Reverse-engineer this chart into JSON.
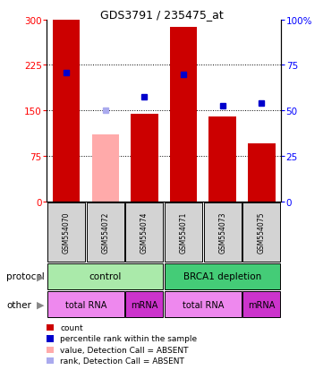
{
  "title": "GDS3791 / 235475_at",
  "samples": [
    "GSM554070",
    "GSM554072",
    "GSM554074",
    "GSM554071",
    "GSM554073",
    "GSM554075"
  ],
  "bar_heights": [
    300,
    110,
    145,
    288,
    140,
    95
  ],
  "bar_colors": [
    "#cc0000",
    "#ffaaaa",
    "#cc0000",
    "#cc0000",
    "#cc0000",
    "#cc0000"
  ],
  "blue_dots_y": [
    213,
    null,
    172,
    210,
    158,
    162
  ],
  "blue_dots_absent_y": [
    null,
    150,
    null,
    null,
    null,
    null
  ],
  "ylim_left": [
    0,
    300
  ],
  "ylim_right": [
    0,
    100
  ],
  "yticks_left": [
    0,
    75,
    150,
    225,
    300
  ],
  "yticks_right": [
    0,
    25,
    50,
    75,
    100
  ],
  "ytick_labels_left": [
    "0",
    "75",
    "150",
    "225",
    "300"
  ],
  "ytick_labels_right": [
    "0",
    "25",
    "50",
    "75",
    "100%"
  ],
  "protocol_groups": [
    {
      "label": "control",
      "start": 0,
      "end": 3,
      "color": "#aaeaaa"
    },
    {
      "label": "BRCA1 depletion",
      "start": 3,
      "end": 6,
      "color": "#44cc77"
    }
  ],
  "other_groups": [
    {
      "label": "total RNA",
      "start": 0,
      "end": 2,
      "color": "#ee88ee"
    },
    {
      "label": "mRNA",
      "start": 2,
      "end": 3,
      "color": "#cc33cc"
    },
    {
      "label": "total RNA",
      "start": 3,
      "end": 5,
      "color": "#ee88ee"
    },
    {
      "label": "mRNA",
      "start": 5,
      "end": 6,
      "color": "#cc33cc"
    }
  ],
  "legend_items": [
    {
      "label": "count",
      "color": "#cc0000"
    },
    {
      "label": "percentile rank within the sample",
      "color": "#0000cc"
    },
    {
      "label": "value, Detection Call = ABSENT",
      "color": "#ffaaaa"
    },
    {
      "label": "rank, Detection Call = ABSENT",
      "color": "#aaaaee"
    }
  ],
  "protocol_label": "protocol",
  "other_label": "other",
  "bar_width": 0.7,
  "x_positions": [
    0,
    1,
    2,
    3,
    4,
    5
  ]
}
